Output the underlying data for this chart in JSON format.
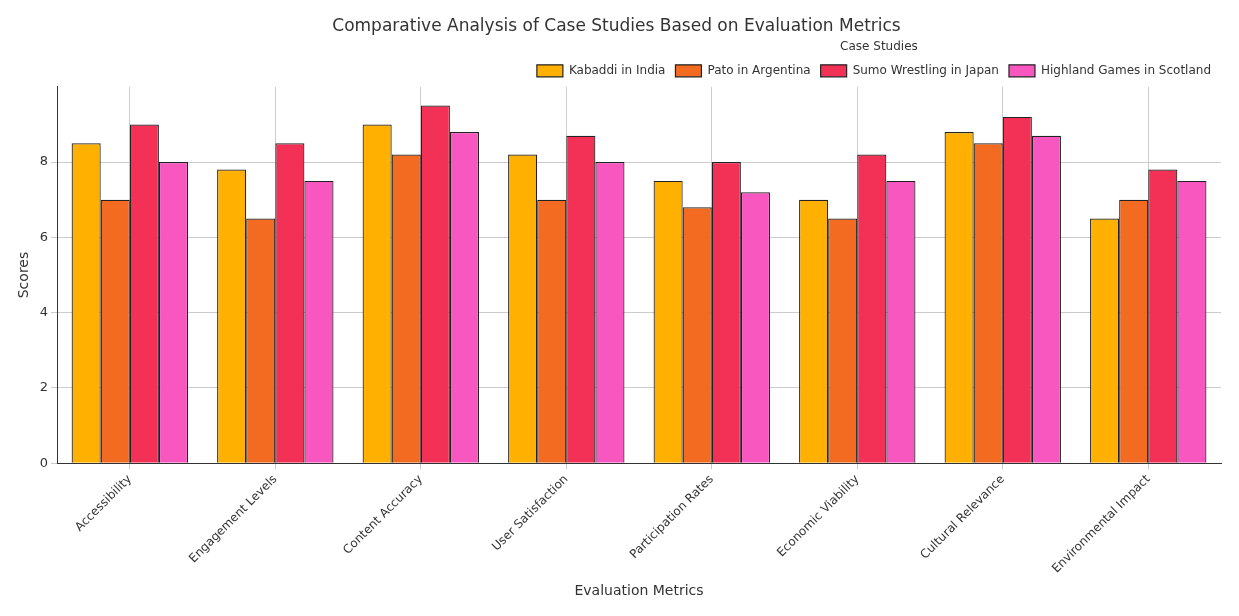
{
  "chart_data": {
    "type": "bar",
    "title": "Comparative Analysis of Case Studies Based on Evaluation Metrics",
    "xlabel": "Evaluation Metrics",
    "ylabel": "Scores",
    "legend_title": "Case Studies",
    "categories": [
      "Accessibility",
      "Engagement Levels",
      "Content Accuracy",
      "User Satisfaction",
      "Participation Rates",
      "Economic Viability",
      "Cultural Relevance",
      "Environmental Impact"
    ],
    "series": [
      {
        "name": "Kabaddi in India",
        "color": "#ffb000",
        "values": [
          8.5,
          7.8,
          9.0,
          8.2,
          7.5,
          7.0,
          8.8,
          6.5
        ]
      },
      {
        "name": "Pato in Argentina",
        "color": "#f26b21",
        "values": [
          7.0,
          6.5,
          8.2,
          7.0,
          6.8,
          6.5,
          8.5,
          7.0
        ]
      },
      {
        "name": "Sumo Wrestling in Japan",
        "color": "#f33157",
        "values": [
          9.0,
          8.5,
          9.5,
          8.7,
          8.0,
          8.2,
          9.2,
          7.8
        ]
      },
      {
        "name": "Highland Games in Scotland",
        "color": "#f857c0",
        "values": [
          8.0,
          7.5,
          8.8,
          8.0,
          7.2,
          7.5,
          8.7,
          7.5
        ]
      }
    ],
    "ylim": [
      0,
      10
    ],
    "yticks": [
      0,
      2,
      4,
      6,
      8
    ],
    "grid": true,
    "legend": "top right"
  }
}
